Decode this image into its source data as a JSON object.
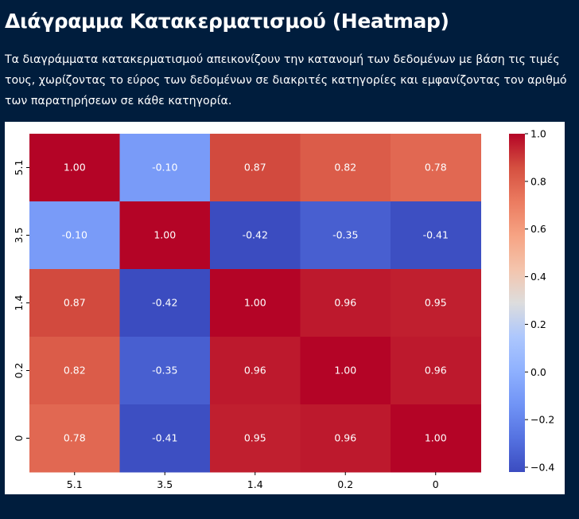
{
  "page": {
    "title": "Διάγραμμα Κατακερματισμού (Heatmap)",
    "description": "Τα διαγράμματα κατακερματισμού απεικονίζουν την κατανομή των δεδομένων με βάση τις τιμές τους, χωρίζοντας το εύρος των δεδομένων σε διακριτές κατηγορίες και εμφανίζοντας τον αριθμό των παρατηρήσεων σε κάθε κατηγορία."
  },
  "colors": {
    "page_background": "#001d3d",
    "text": "#ffffff",
    "colormap": "coolwarm"
  },
  "chart_data": {
    "type": "heatmap",
    "title": "",
    "xlabel": "",
    "ylabel": "",
    "x_categories": [
      "5.1",
      "3.5",
      "1.4",
      "0.2",
      "0"
    ],
    "y_categories": [
      "5.1",
      "3.5",
      "1.4",
      "0.2",
      "0"
    ],
    "values": [
      [
        1.0,
        -0.1,
        0.87,
        0.82,
        0.78
      ],
      [
        -0.1,
        1.0,
        -0.42,
        -0.35,
        -0.41
      ],
      [
        0.87,
        -0.42,
        1.0,
        0.96,
        0.95
      ],
      [
        0.82,
        -0.35,
        0.96,
        1.0,
        0.96
      ],
      [
        0.78,
        -0.41,
        0.95,
        0.96,
        1.0
      ]
    ],
    "annotation_format": "0.00",
    "colorbar": {
      "range": [
        -0.42,
        1.0
      ],
      "ticks": [
        -0.4,
        -0.2,
        0.0,
        0.2,
        0.4,
        0.6,
        0.8,
        1.0
      ],
      "tick_labels": [
        "−0.4",
        "−0.2",
        "0.0",
        "0.2",
        "0.4",
        "0.6",
        "0.8",
        "1.0"
      ]
    },
    "grid": false,
    "legend": "colorbar-right"
  }
}
